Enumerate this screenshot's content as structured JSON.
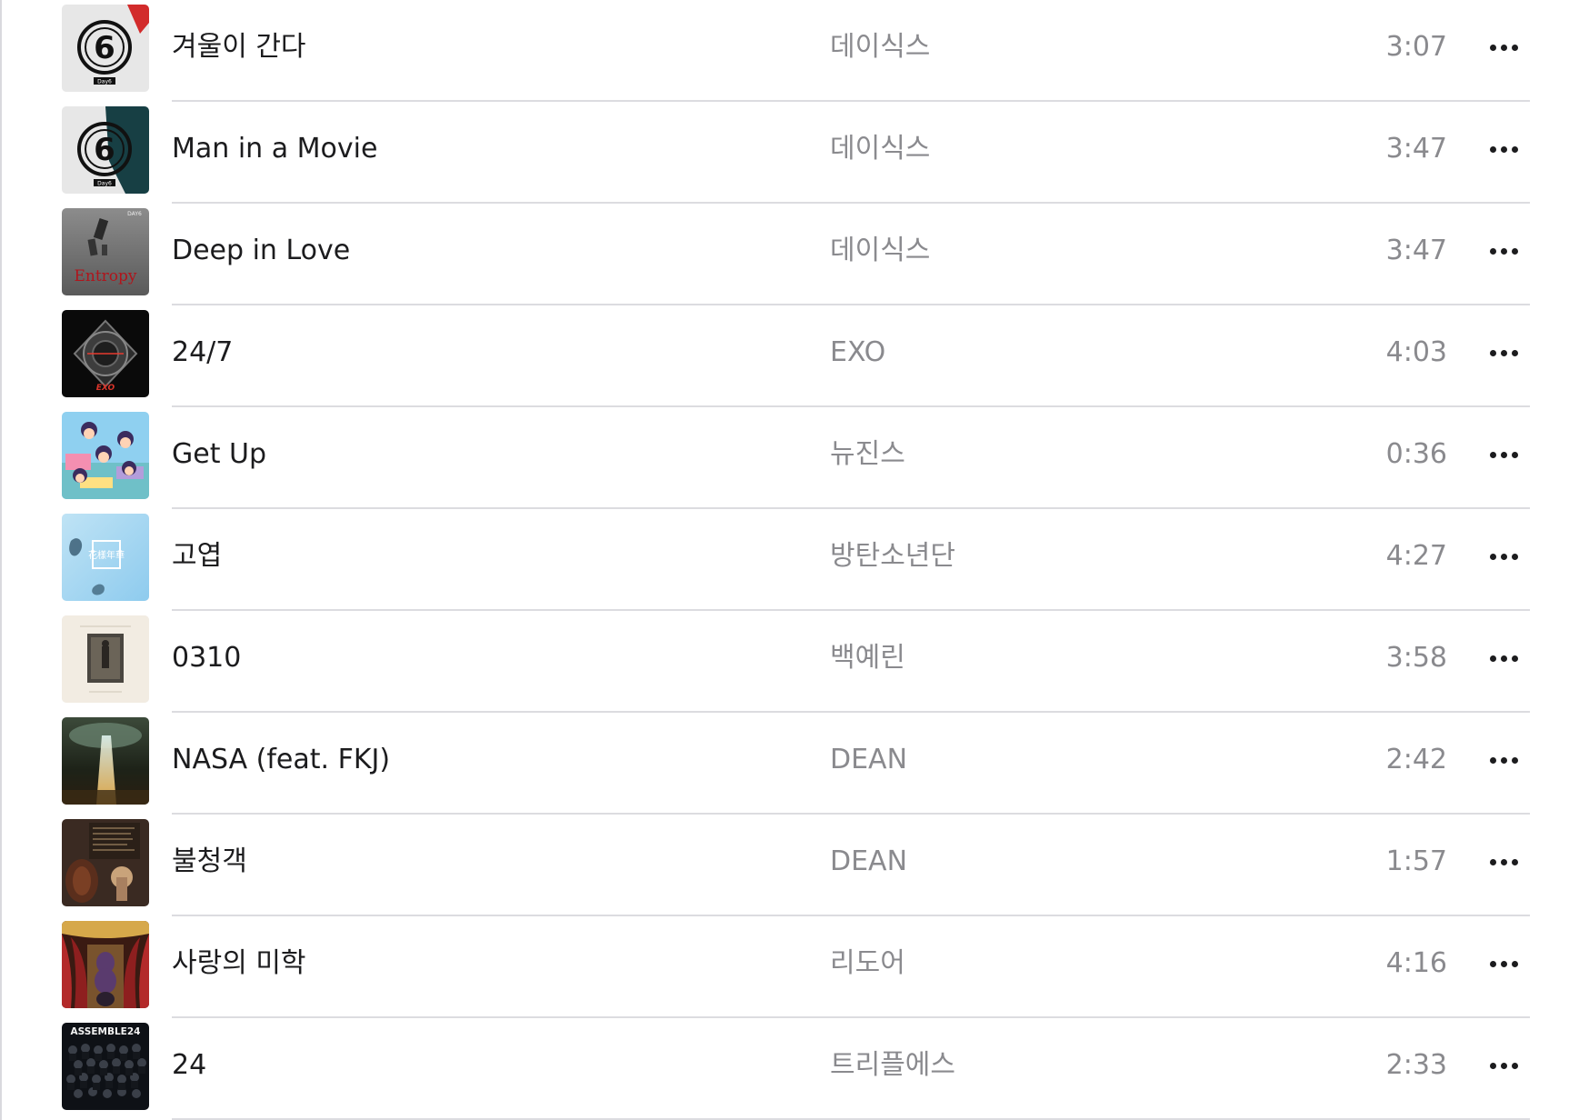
{
  "tracks": [
    {
      "title": "겨울이 간다",
      "artist": "데이식스",
      "duration": "3:07",
      "artwork_icon": "day6-album-art-icon",
      "artwork_text": "Day6"
    },
    {
      "title": "Man in a Movie",
      "artist": "데이식스",
      "duration": "3:47",
      "artwork_icon": "day6-album-art-icon",
      "artwork_text": "Day6"
    },
    {
      "title": "Deep in Love",
      "artist": "데이식스",
      "duration": "3:47",
      "artwork_icon": "entropy-album-art-icon",
      "artwork_text": "Entropy"
    },
    {
      "title": "24/7",
      "artist": "EXO",
      "duration": "4:03",
      "artwork_icon": "exo-album-art-icon",
      "artwork_text": "EXO"
    },
    {
      "title": "Get Up",
      "artist": "뉴진스",
      "duration": "0:36",
      "artwork_icon": "get-up-album-art-icon",
      "artwork_text": ""
    },
    {
      "title": "고엽",
      "artist": "방탄소년단",
      "duration": "4:27",
      "artwork_icon": "bts-album-art-icon",
      "artwork_text": "花樣年華"
    },
    {
      "title": "0310",
      "artist": "백예린",
      "duration": "3:58",
      "artwork_icon": "0310-album-art-icon",
      "artwork_text": ""
    },
    {
      "title": "NASA (feat. FKJ)",
      "artist": "DEAN",
      "duration": "2:42",
      "artwork_icon": "nasa-album-art-icon",
      "artwork_text": ""
    },
    {
      "title": "불청객",
      "artist": "DEAN",
      "duration": "1:57",
      "artwork_icon": "dean-album-art-icon",
      "artwork_text": ""
    },
    {
      "title": "사랑의 미학",
      "artist": "리도어",
      "duration": "4:16",
      "artwork_icon": "theater-album-art-icon",
      "artwork_text": ""
    },
    {
      "title": "24",
      "artist": "트리플에스",
      "duration": "2:33",
      "artwork_icon": "assemble24-album-art-icon",
      "artwork_text": "ASSEMBLE24"
    }
  ],
  "more_icon": "ellipsis-icon",
  "colors": {
    "primary_text": "#1c1c1e",
    "secondary_text": "#8a8a8e",
    "divider": "#dcdce0",
    "background": "#ffffff"
  }
}
